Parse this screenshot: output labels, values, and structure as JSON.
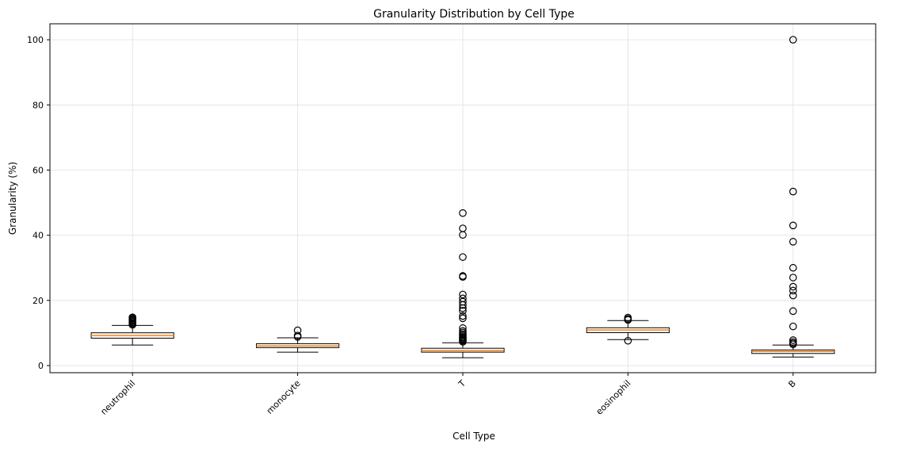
{
  "chart_data": {
    "type": "box",
    "title": "Granularity Distribution by Cell Type",
    "xlabel": "Cell Type",
    "ylabel": "Granularity (%)",
    "ylim": [
      -2.2,
      104.9
    ],
    "yticks": [
      0,
      20,
      40,
      60,
      80,
      100
    ],
    "grid": true,
    "colors": {
      "box_edge": "#000000",
      "median": "#ff7f0e",
      "grid": "#e0e0e0"
    },
    "categories": [
      "neutrophil",
      "monocyte",
      "T",
      "eosinophil",
      "B"
    ],
    "boxes": [
      {
        "category": "neutrophil",
        "whisker_low": 6.3,
        "q1": 8.4,
        "median": 9.2,
        "q3": 10.05,
        "whisker_high": 12.3,
        "outliers": [
          12.5,
          12.8,
          13.1,
          13.4,
          13.7,
          14.0,
          14.3,
          14.6,
          14.8
        ]
      },
      {
        "category": "monocyte",
        "whisker_low": 4.1,
        "q1": 5.5,
        "median": 6.0,
        "q3": 6.7,
        "whisker_high": 8.5,
        "outliers": [
          8.8,
          9.2,
          10.8
        ]
      },
      {
        "category": "T",
        "whisker_low": 2.4,
        "q1": 4.1,
        "median": 4.6,
        "q3": 5.3,
        "whisker_high": 7.0,
        "outliers": [
          7.3,
          7.6,
          7.9,
          8.2,
          8.5,
          8.8,
          9.2,
          9.6,
          10.1,
          10.6,
          11.5,
          14.5,
          15.2,
          16.8,
          17.6,
          18.6,
          19.6,
          20.6,
          21.8,
          27.2,
          27.5,
          33.3,
          40.1,
          42.1,
          46.8
        ]
      },
      {
        "category": "eosinophil",
        "whisker_low": 7.95,
        "q1": 10.1,
        "median": 10.9,
        "q3": 11.6,
        "whisker_high": 13.8,
        "outliers": [
          7.6,
          14.0,
          14.3,
          14.7
        ]
      },
      {
        "category": "B",
        "whisker_low": 2.6,
        "q1": 3.7,
        "median": 4.3,
        "q3": 4.8,
        "whisker_high": 6.3,
        "outliers": [
          6.5,
          6.8,
          7.2,
          7.8,
          12.0,
          16.7,
          21.5,
          23.0,
          24.2,
          27.0,
          30.0,
          38.0,
          43.0,
          53.4,
          100.0
        ]
      }
    ]
  }
}
